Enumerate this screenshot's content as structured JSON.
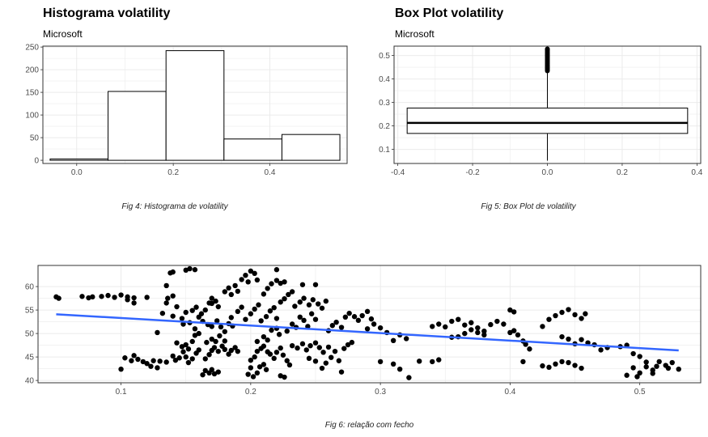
{
  "charts": [
    {
      "title": "Histograma volatility",
      "subtitle": "Microsoft",
      "caption": "Fig 4: Histograma de volatility"
    },
    {
      "title": "Box Plot volatility",
      "subtitle": "Microsoft",
      "caption": "Fig 5: Box Plot de volatility"
    },
    {
      "title": "",
      "subtitle": "",
      "caption": "Fig 6: relação com fecho"
    }
  ],
  "colors": {
    "grid": "#ebebeb",
    "frame": "#333333",
    "smooth": "#3366ff",
    "point": "#000000",
    "bar_fill": "#ffffff",
    "bar_stroke": "#000000"
  },
  "chart_data": [
    {
      "type": "bar",
      "title": "Histograma volatility",
      "subtitle": "Microsoft",
      "bins": [
        [
          -0.055,
          0.065
        ],
        [
          0.065,
          0.185
        ],
        [
          0.185,
          0.305
        ],
        [
          0.305,
          0.425
        ],
        [
          0.425,
          0.545
        ]
      ],
      "values": [
        3,
        152,
        242,
        47,
        57
      ],
      "xlim": [
        -0.07,
        0.56
      ],
      "ylim": [
        -7,
        252
      ],
      "xticks": [
        0.0,
        0.2,
        0.4
      ],
      "yticks": [
        0,
        50,
        100,
        150,
        200,
        250
      ],
      "grid": true
    },
    {
      "type": "box",
      "title": "Box Plot volatility",
      "subtitle": "Microsoft",
      "box": {
        "x_left": -0.375,
        "x_right": 0.375,
        "q1": 0.168,
        "median": 0.213,
        "q3": 0.276,
        "whisker_low": 0.052,
        "whisker_high": 0.427
      },
      "outliers": [
        0.435,
        0.44,
        0.445,
        0.45,
        0.455,
        0.46,
        0.465,
        0.47,
        0.475,
        0.48,
        0.485,
        0.49,
        0.495,
        0.5,
        0.505,
        0.51,
        0.515,
        0.52,
        0.525,
        0.528
      ],
      "xlim": [
        -0.41,
        0.41
      ],
      "ylim": [
        0.04,
        0.54
      ],
      "xticks": [
        -0.4,
        -0.2,
        0.0,
        0.2,
        0.4
      ],
      "xtick_labels": [
        "-0.4",
        "-0.2",
        "0.0",
        "0.2",
        "0.4"
      ],
      "yticks": [
        0.1,
        0.2,
        0.3,
        0.4,
        0.5
      ],
      "grid": true
    },
    {
      "type": "scatter",
      "title": "",
      "xlabel": "",
      "ylabel": "",
      "xlim": [
        0.036,
        0.547
      ],
      "ylim": [
        39.5,
        64.5
      ],
      "xticks": [
        0.1,
        0.2,
        0.3,
        0.4,
        0.5
      ],
      "yticks": [
        40,
        45,
        50,
        55,
        60
      ],
      "smooth": {
        "x": [
          0.05,
          0.53
        ],
        "y": [
          54.1,
          46.4
        ]
      },
      "points": [
        [
          0.05,
          57.8
        ],
        [
          0.052,
          57.5
        ],
        [
          0.07,
          57.9
        ],
        [
          0.075,
          57.6
        ],
        [
          0.078,
          57.8
        ],
        [
          0.085,
          57.9
        ],
        [
          0.09,
          58.1
        ],
        [
          0.095,
          57.7
        ],
        [
          0.1,
          58.2
        ],
        [
          0.105,
          57.8
        ],
        [
          0.11,
          57.6
        ],
        [
          0.12,
          57.7
        ],
        [
          0.105,
          57.2
        ],
        [
          0.11,
          56.5
        ],
        [
          0.1,
          42.4
        ],
        [
          0.103,
          44.8
        ],
        [
          0.108,
          44.2
        ],
        [
          0.11,
          45.3
        ],
        [
          0.113,
          44.5
        ],
        [
          0.117,
          44.0
        ],
        [
          0.12,
          43.6
        ],
        [
          0.123,
          43.0
        ],
        [
          0.125,
          44.2
        ],
        [
          0.128,
          42.7
        ],
        [
          0.13,
          44.1
        ],
        [
          0.135,
          43.9
        ],
        [
          0.128,
          50.2
        ],
        [
          0.132,
          54.3
        ],
        [
          0.135,
          56.5
        ],
        [
          0.136,
          57.5
        ],
        [
          0.14,
          58.0
        ],
        [
          0.14,
          53.7
        ],
        [
          0.143,
          55.7
        ],
        [
          0.135,
          60.2
        ],
        [
          0.138,
          62.9
        ],
        [
          0.14,
          63.1
        ],
        [
          0.14,
          45.2
        ],
        [
          0.142,
          44.3
        ],
        [
          0.145,
          44.8
        ],
        [
          0.148,
          46.1
        ],
        [
          0.15,
          45.0
        ],
        [
          0.152,
          43.8
        ],
        [
          0.155,
          44.6
        ],
        [
          0.158,
          45.8
        ],
        [
          0.16,
          46.5
        ],
        [
          0.143,
          48.0
        ],
        [
          0.147,
          47.2
        ],
        [
          0.15,
          47.6
        ],
        [
          0.152,
          46.7
        ],
        [
          0.155,
          48.3
        ],
        [
          0.157,
          49.6
        ],
        [
          0.16,
          50.0
        ],
        [
          0.147,
          53.2
        ],
        [
          0.15,
          54.5
        ],
        [
          0.155,
          54.9
        ],
        [
          0.158,
          55.6
        ],
        [
          0.162,
          54.2
        ],
        [
          0.165,
          55.0
        ],
        [
          0.168,
          56.5
        ],
        [
          0.17,
          57.5
        ],
        [
          0.173,
          56.9
        ],
        [
          0.148,
          52.0
        ],
        [
          0.153,
          52.3
        ],
        [
          0.157,
          51.0
        ],
        [
          0.16,
          53.5
        ],
        [
          0.163,
          52.6
        ],
        [
          0.15,
          63.5
        ],
        [
          0.153,
          63.8
        ],
        [
          0.157,
          63.6
        ],
        [
          0.163,
          41.2
        ],
        [
          0.165,
          42.1
        ],
        [
          0.168,
          41.6
        ],
        [
          0.17,
          42.3
        ],
        [
          0.172,
          41.4
        ],
        [
          0.175,
          41.8
        ],
        [
          0.165,
          44.6
        ],
        [
          0.168,
          45.5
        ],
        [
          0.17,
          46.4
        ],
        [
          0.172,
          47.0
        ],
        [
          0.175,
          46.2
        ],
        [
          0.178,
          47.3
        ],
        [
          0.18,
          46.6
        ],
        [
          0.183,
          45.6
        ],
        [
          0.185,
          46.4
        ],
        [
          0.188,
          47.0
        ],
        [
          0.19,
          46.2
        ],
        [
          0.166,
          48.1
        ],
        [
          0.17,
          48.8
        ],
        [
          0.173,
          48.3
        ],
        [
          0.176,
          49.5
        ],
        [
          0.18,
          48.4
        ],
        [
          0.167,
          51.9
        ],
        [
          0.17,
          51.5
        ],
        [
          0.174,
          52.7
        ],
        [
          0.177,
          51.4
        ],
        [
          0.18,
          50.4
        ],
        [
          0.183,
          52.1
        ],
        [
          0.186,
          51.6
        ],
        [
          0.17,
          56.4
        ],
        [
          0.175,
          55.7
        ],
        [
          0.18,
          58.9
        ],
        [
          0.183,
          59.7
        ],
        [
          0.185,
          58.3
        ],
        [
          0.188,
          60.2
        ],
        [
          0.19,
          59.0
        ],
        [
          0.193,
          61.5
        ],
        [
          0.196,
          62.4
        ],
        [
          0.198,
          61.0
        ],
        [
          0.2,
          63.3
        ],
        [
          0.203,
          62.8
        ],
        [
          0.205,
          61.4
        ],
        [
          0.185,
          53.4
        ],
        [
          0.19,
          54.7
        ],
        [
          0.193,
          55.6
        ],
        [
          0.196,
          53.0
        ],
        [
          0.2,
          54.2
        ],
        [
          0.203,
          55.2
        ],
        [
          0.206,
          56.1
        ],
        [
          0.198,
          41.3
        ],
        [
          0.2,
          42.7
        ],
        [
          0.202,
          40.8
        ],
        [
          0.205,
          41.6
        ],
        [
          0.207,
          42.9
        ],
        [
          0.21,
          43.4
        ],
        [
          0.212,
          42.3
        ],
        [
          0.2,
          44.3
        ],
        [
          0.203,
          45.0
        ],
        [
          0.205,
          46.2
        ],
        [
          0.208,
          46.8
        ],
        [
          0.21,
          47.3
        ],
        [
          0.213,
          46.1
        ],
        [
          0.215,
          45.6
        ],
        [
          0.218,
          44.7
        ],
        [
          0.22,
          46.0
        ],
        [
          0.223,
          46.9
        ],
        [
          0.225,
          45.4
        ],
        [
          0.228,
          44.2
        ],
        [
          0.23,
          43.3
        ],
        [
          0.205,
          48.3
        ],
        [
          0.21,
          49.3
        ],
        [
          0.213,
          48.6
        ],
        [
          0.216,
          50.7
        ],
        [
          0.22,
          51.1
        ],
        [
          0.222,
          49.8
        ],
        [
          0.208,
          52.7
        ],
        [
          0.212,
          53.6
        ],
        [
          0.215,
          54.8
        ],
        [
          0.218,
          55.5
        ],
        [
          0.22,
          53.2
        ],
        [
          0.223,
          56.7
        ],
        [
          0.226,
          57.4
        ],
        [
          0.229,
          58.3
        ],
        [
          0.232,
          58.9
        ],
        [
          0.21,
          58.4
        ],
        [
          0.213,
          59.6
        ],
        [
          0.216,
          60.6
        ],
        [
          0.22,
          61.3
        ],
        [
          0.223,
          60.7
        ],
        [
          0.226,
          61.0
        ],
        [
          0.22,
          63.6
        ],
        [
          0.223,
          41.0
        ],
        [
          0.226,
          40.7
        ],
        [
          0.228,
          50.5
        ],
        [
          0.232,
          52.0
        ],
        [
          0.235,
          51.3
        ],
        [
          0.238,
          53.5
        ],
        [
          0.241,
          52.8
        ],
        [
          0.244,
          51.5
        ],
        [
          0.247,
          54.2
        ],
        [
          0.25,
          53.0
        ],
        [
          0.232,
          47.4
        ],
        [
          0.236,
          46.9
        ],
        [
          0.24,
          47.8
        ],
        [
          0.243,
          46.5
        ],
        [
          0.246,
          47.4
        ],
        [
          0.25,
          48.0
        ],
        [
          0.253,
          47.0
        ],
        [
          0.256,
          46.0
        ],
        [
          0.26,
          47.1
        ],
        [
          0.234,
          55.8
        ],
        [
          0.238,
          56.7
        ],
        [
          0.241,
          57.5
        ],
        [
          0.245,
          56.1
        ],
        [
          0.248,
          57.2
        ],
        [
          0.252,
          56.3
        ],
        [
          0.255,
          55.4
        ],
        [
          0.258,
          56.9
        ],
        [
          0.24,
          60.4
        ],
        [
          0.25,
          60.4
        ],
        [
          0.245,
          44.7
        ],
        [
          0.25,
          44.1
        ],
        [
          0.255,
          42.6
        ],
        [
          0.258,
          43.7
        ],
        [
          0.262,
          44.9
        ],
        [
          0.265,
          46.2
        ],
        [
          0.268,
          44.2
        ],
        [
          0.272,
          46.8
        ],
        [
          0.275,
          47.6
        ],
        [
          0.278,
          48.1
        ],
        [
          0.26,
          50.6
        ],
        [
          0.263,
          51.7
        ],
        [
          0.266,
          52.4
        ],
        [
          0.27,
          51.3
        ],
        [
          0.273,
          53.5
        ],
        [
          0.276,
          54.3
        ],
        [
          0.28,
          53.6
        ],
        [
          0.283,
          52.8
        ],
        [
          0.286,
          53.8
        ],
        [
          0.29,
          54.7
        ],
        [
          0.293,
          53.1
        ],
        [
          0.27,
          41.8
        ],
        [
          0.29,
          51.0
        ],
        [
          0.295,
          52.0
        ],
        [
          0.3,
          51.2
        ],
        [
          0.305,
          50.2
        ],
        [
          0.31,
          48.5
        ],
        [
          0.315,
          49.7
        ],
        [
          0.32,
          48.9
        ],
        [
          0.3,
          44.0
        ],
        [
          0.31,
          43.5
        ],
        [
          0.315,
          42.4
        ],
        [
          0.322,
          40.6
        ],
        [
          0.33,
          44.1
        ],
        [
          0.34,
          44.0
        ],
        [
          0.345,
          44.4
        ],
        [
          0.34,
          51.5
        ],
        [
          0.345,
          52.0
        ],
        [
          0.35,
          51.4
        ],
        [
          0.355,
          52.6
        ],
        [
          0.36,
          53.0
        ],
        [
          0.365,
          51.8
        ],
        [
          0.37,
          52.3
        ],
        [
          0.375,
          51.2
        ],
        [
          0.38,
          50.5
        ],
        [
          0.385,
          51.9
        ],
        [
          0.39,
          52.6
        ],
        [
          0.395,
          52.0
        ],
        [
          0.355,
          49.2
        ],
        [
          0.36,
          49.3
        ],
        [
          0.365,
          50.0
        ],
        [
          0.37,
          50.8
        ],
        [
          0.375,
          50.2
        ],
        [
          0.38,
          49.7
        ],
        [
          0.4,
          50.2
        ],
        [
          0.403,
          50.6
        ],
        [
          0.406,
          49.7
        ],
        [
          0.41,
          48.4
        ],
        [
          0.412,
          47.7
        ],
        [
          0.415,
          46.7
        ],
        [
          0.4,
          55.0
        ],
        [
          0.403,
          54.6
        ],
        [
          0.41,
          44.0
        ],
        [
          0.425,
          51.5
        ],
        [
          0.43,
          53.0
        ],
        [
          0.435,
          53.8
        ],
        [
          0.44,
          54.5
        ],
        [
          0.445,
          55.1
        ],
        [
          0.45,
          54.0
        ],
        [
          0.455,
          53.2
        ],
        [
          0.458,
          54.2
        ],
        [
          0.44,
          49.3
        ],
        [
          0.445,
          48.8
        ],
        [
          0.45,
          47.8
        ],
        [
          0.455,
          48.7
        ],
        [
          0.46,
          48.0
        ],
        [
          0.425,
          43.1
        ],
        [
          0.43,
          42.8
        ],
        [
          0.435,
          43.5
        ],
        [
          0.44,
          44.0
        ],
        [
          0.445,
          43.8
        ],
        [
          0.45,
          43.2
        ],
        [
          0.455,
          42.6
        ],
        [
          0.465,
          47.6
        ],
        [
          0.47,
          46.5
        ],
        [
          0.475,
          47.0
        ],
        [
          0.485,
          47.2
        ],
        [
          0.49,
          47.5
        ],
        [
          0.495,
          45.7
        ],
        [
          0.5,
          45.1
        ],
        [
          0.505,
          43.9
        ],
        [
          0.51,
          42.2
        ],
        [
          0.513,
          43.0
        ],
        [
          0.515,
          44.0
        ],
        [
          0.52,
          43.2
        ],
        [
          0.522,
          42.6
        ],
        [
          0.525,
          43.8
        ],
        [
          0.53,
          42.4
        ],
        [
          0.49,
          41.1
        ],
        [
          0.495,
          42.7
        ],
        [
          0.498,
          40.8
        ],
        [
          0.5,
          41.6
        ],
        [
          0.505,
          42.9
        ],
        [
          0.51,
          41.5
        ]
      ]
    }
  ]
}
